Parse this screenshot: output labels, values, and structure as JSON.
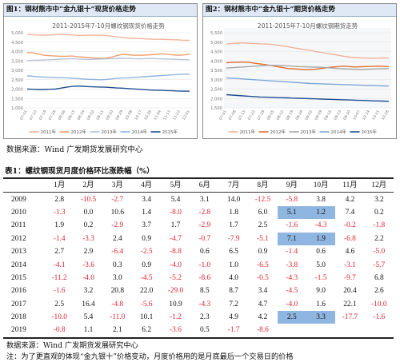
{
  "panel1": {
    "heading": "图1：钢材熊市中“金九银十”现货价格走势",
    "chart_title": "2011-2015年7-10月螺纹钢现货价格走势",
    "chart_data": {
      "type": "line",
      "ylim": [
        1000,
        5000
      ],
      "yticks": [
        "5,000",
        "4,500",
        "4,000",
        "3,500",
        "3,000",
        "2,500",
        "2,000",
        "1,500",
        "1,000"
      ],
      "series": [
        {
          "name": "2011年",
          "color": "#f2b39b",
          "values": [
            4920,
            4900,
            4880,
            4870,
            4880,
            4900,
            4910,
            4900,
            4880,
            4860,
            4860,
            4870,
            4880,
            4870,
            4850,
            4820,
            4780,
            4750,
            4720,
            4700,
            4690,
            4680,
            4660,
            4650,
            4650,
            4640,
            4630,
            4620,
            4600,
            4600
          ]
        },
        {
          "name": "2012年",
          "color": "#f0a070",
          "values": [
            3950,
            3930,
            3870,
            3800,
            3780,
            3760,
            3750,
            3750,
            3760,
            3720,
            3700,
            3680,
            3650,
            3640,
            3650,
            3700,
            3780,
            3850,
            3830,
            3810,
            3800,
            3810,
            3830,
            3850,
            3880,
            3860,
            3820,
            3800,
            3820,
            3850
          ]
        },
        {
          "name": "2013年",
          "color": "#b7c3d7",
          "values": [
            3520,
            3530,
            3540,
            3550,
            3560,
            3580,
            3600,
            3610,
            3620,
            3600,
            3590,
            3580,
            3590,
            3600,
            3610,
            3620,
            3630,
            3640,
            3630,
            3620,
            3610,
            3620,
            3630,
            3620,
            3610,
            3600,
            3590,
            3580,
            3570,
            3560
          ]
        },
        {
          "name": "2014年",
          "color": "#8fb6e0",
          "values": [
            2700,
            2680,
            2660,
            2640,
            2630,
            2620,
            2610,
            2600,
            2580,
            2560,
            2540,
            2520,
            2510,
            2500,
            2510,
            2540,
            2570,
            2590,
            2600,
            2620,
            2640,
            2660,
            2680,
            2700,
            2720,
            2740,
            2760,
            2780,
            2790,
            2800
          ]
        },
        {
          "name": "2015年",
          "color": "#1f4e8f",
          "values": [
            2000,
            1990,
            1980,
            1980,
            1990,
            2000,
            2050,
            2100,
            2140,
            2160,
            2150,
            2130,
            2120,
            2110,
            2100,
            2080,
            2060,
            2050,
            2030,
            2010,
            1990,
            1970,
            1950,
            1940,
            1930,
            1920,
            1910,
            1900,
            1890,
            1890
          ]
        }
      ],
      "xlabels": [
        "07-01",
        "07-10",
        "07-19",
        "07-28",
        "08-06",
        "08-15",
        "08-24",
        "09-02",
        "09-11",
        "09-20",
        "09-29",
        "10-08",
        "10-17",
        "10-26",
        "11-04",
        "11-13",
        "11-22",
        "12-01"
      ]
    }
  },
  "panel2": {
    "heading": "图2：钢材熊市中“金九银十”期货价格走势",
    "chart_title": "2011-2015年7-10月螺纹钢期货走势",
    "chart_data": {
      "type": "line",
      "ylim": [
        1500,
        5500
      ],
      "yticks": [
        "5,500",
        "5,000",
        "4,500",
        "4,000",
        "3,500",
        "3,000",
        "2,500",
        "2,000",
        "1,500"
      ],
      "series": [
        {
          "name": "2011年",
          "color": "#f2b39b",
          "values": [
            4900,
            4920,
            4950,
            4960,
            4940,
            4930,
            4910,
            4900,
            4880,
            4850,
            4800,
            4760,
            4700,
            4650,
            4600,
            4560,
            4500,
            4450,
            4400,
            4350,
            4300,
            4250,
            4200,
            4180,
            4160,
            4150,
            4140,
            4150,
            4160,
            4150
          ]
        },
        {
          "name": "2012年",
          "color": "#e07030",
          "values": [
            3900,
            3920,
            3930,
            3940,
            3920,
            3880,
            3840,
            3800,
            3760,
            3700,
            3650,
            3600,
            3580,
            3560,
            3540,
            3540,
            3560,
            3600,
            3640,
            3680,
            3700,
            3720,
            3700,
            3680,
            3690,
            3700,
            3710,
            3720,
            3710,
            3700
          ]
        },
        {
          "name": "2013年",
          "color": "#a6a6a6",
          "values": [
            3620,
            3640,
            3660,
            3680,
            3700,
            3720,
            3740,
            3760,
            3770,
            3760,
            3750,
            3740,
            3720,
            3700,
            3690,
            3680,
            3670,
            3660,
            3640,
            3620,
            3600,
            3580,
            3570,
            3560,
            3550,
            3560,
            3570,
            3580,
            3590,
            3600
          ]
        },
        {
          "name": "2014年",
          "color": "#7ea6d6",
          "values": [
            3100,
            3080,
            3060,
            3040,
            3020,
            3000,
            2980,
            2960,
            2940,
            2920,
            2900,
            2880,
            2860,
            2840,
            2820,
            2800,
            2790,
            2780,
            2770,
            2760,
            2750,
            2740,
            2730,
            2720,
            2710,
            2700,
            2690,
            2680,
            2670,
            2660
          ]
        },
        {
          "name": "2015年",
          "color": "#1f4e8f",
          "values": [
            2200,
            2180,
            2160,
            2140,
            2120,
            2100,
            2080,
            2070,
            2060,
            2050,
            2040,
            2030,
            2020,
            2010,
            2000,
            1990,
            1980,
            1970,
            1960,
            1950,
            1940,
            1930,
            1920,
            1910,
            1900,
            1890,
            1880,
            1870,
            1860,
            1850
          ]
        }
      ],
      "xlabels": [
        "07-01",
        "07-08",
        "07-15",
        "07-22",
        "07-29",
        "08-05",
        "08-12",
        "08-19",
        "08-26",
        "09-02",
        "09-09",
        "09-16",
        "09-23",
        "09-30",
        "10-07",
        "10-14",
        "10-21",
        "10-28"
      ]
    }
  },
  "source_top": "数据来源：Wind  广发期货发展研究中心",
  "table": {
    "title": "表1：螺纹钢现货月度价格环比涨跌幅（%）",
    "headers": [
      "",
      "1月",
      "2月",
      "3月",
      "4月",
      "5月",
      "6月",
      "7月",
      "8月",
      "9月",
      "10月",
      "11月",
      "12月"
    ],
    "rows": [
      {
        "year": "2009",
        "cells": [
          "2.8",
          "-10.5",
          "-2.7",
          "3.4",
          "5.4",
          "3.1",
          "14.0",
          "-12.5",
          "-5.8",
          "3.8",
          "4.2",
          "3.2"
        ]
      },
      {
        "year": "2010",
        "cells": [
          "-1.3",
          "0.0",
          "10.6",
          "1.4",
          "-8.0",
          "-2.8",
          "1.8",
          "6.0",
          "5.1",
          "1.2",
          "7.4",
          "0.2"
        ]
      },
      {
        "year": "2011",
        "cells": [
          "1.9",
          "0.2",
          "-2.9",
          "3.7",
          "1.7",
          "-2.9",
          "1.7",
          "2.5",
          "-1.6",
          "-4.3",
          "-0.2",
          "-1.8"
        ]
      },
      {
        "year": "2012",
        "cells": [
          "-1.4",
          "-3.3",
          "2.4",
          "0.9",
          "-4.7",
          "-0.7",
          "-7.9",
          "-5.1",
          "7.1",
          "1.9",
          "-6.8",
          "2.2"
        ]
      },
      {
        "year": "2013",
        "cells": [
          "2.7",
          "2.9",
          "-6.4",
          "-2.5",
          "-8.8",
          "0.6",
          "6.5",
          "0.9",
          "-1.4",
          "0.6",
          "4.6",
          "-5.0"
        ]
      },
      {
        "year": "2014",
        "cells": [
          "-4.1",
          "-3.6",
          "0.3",
          "0.9",
          "-4.0",
          "-1.0",
          "1.0",
          "-6.5",
          "-3.8",
          "5.0",
          "-3.1",
          "-5.7"
        ]
      },
      {
        "year": "2015",
        "cells": [
          "-11.2",
          "-4.0",
          "3.0",
          "-4.5",
          "-5.2",
          "-8.6",
          "4.0",
          "-0.5",
          "-4.3",
          "-1.5",
          "-9.7",
          "6.8"
        ]
      },
      {
        "year": "2016",
        "cells": [
          "-1.6",
          "3.2",
          "20.8",
          "22.0",
          "-29.0",
          "8.5",
          "8.7",
          "3.4",
          "-4.5",
          "9.0",
          "20.4",
          "2.6"
        ]
      },
      {
        "year": "2017",
        "cells": [
          "2.5",
          "16.4",
          "-4.8",
          "-5.6",
          "10.9",
          "-4.3",
          "7.2",
          "4.7",
          "-4.0",
          "1.6",
          "22.1",
          "-10.0"
        ]
      },
      {
        "year": "2018",
        "cells": [
          "-10.0",
          "5.4",
          "-11.0",
          "10.1",
          "-1.2",
          "2.3",
          "4.9",
          "4.2",
          "2.5",
          "3.3",
          "-17.7",
          "-1.6"
        ]
      },
      {
        "year": "2019",
        "cells": [
          "-0.8",
          "1.1",
          "2.1",
          "6.2",
          "-3.6",
          "0.5",
          "-1.7",
          "-8.6",
          "",
          "",
          "",
          ""
        ]
      }
    ],
    "highlight": [
      [
        1,
        8
      ],
      [
        1,
        9
      ],
      [
        3,
        8
      ],
      [
        3,
        9
      ],
      [
        9,
        8
      ],
      [
        9,
        9
      ]
    ],
    "negative_color": "#e0242f",
    "highlight_color": "#8fb6e0"
  },
  "source_bottom": "数据来源：Wind  广发期货发展研究中心",
  "note": "注：为了更直观的体现“金九银十”价格变动，月度价格用的是月底最后一个交易日的价格"
}
